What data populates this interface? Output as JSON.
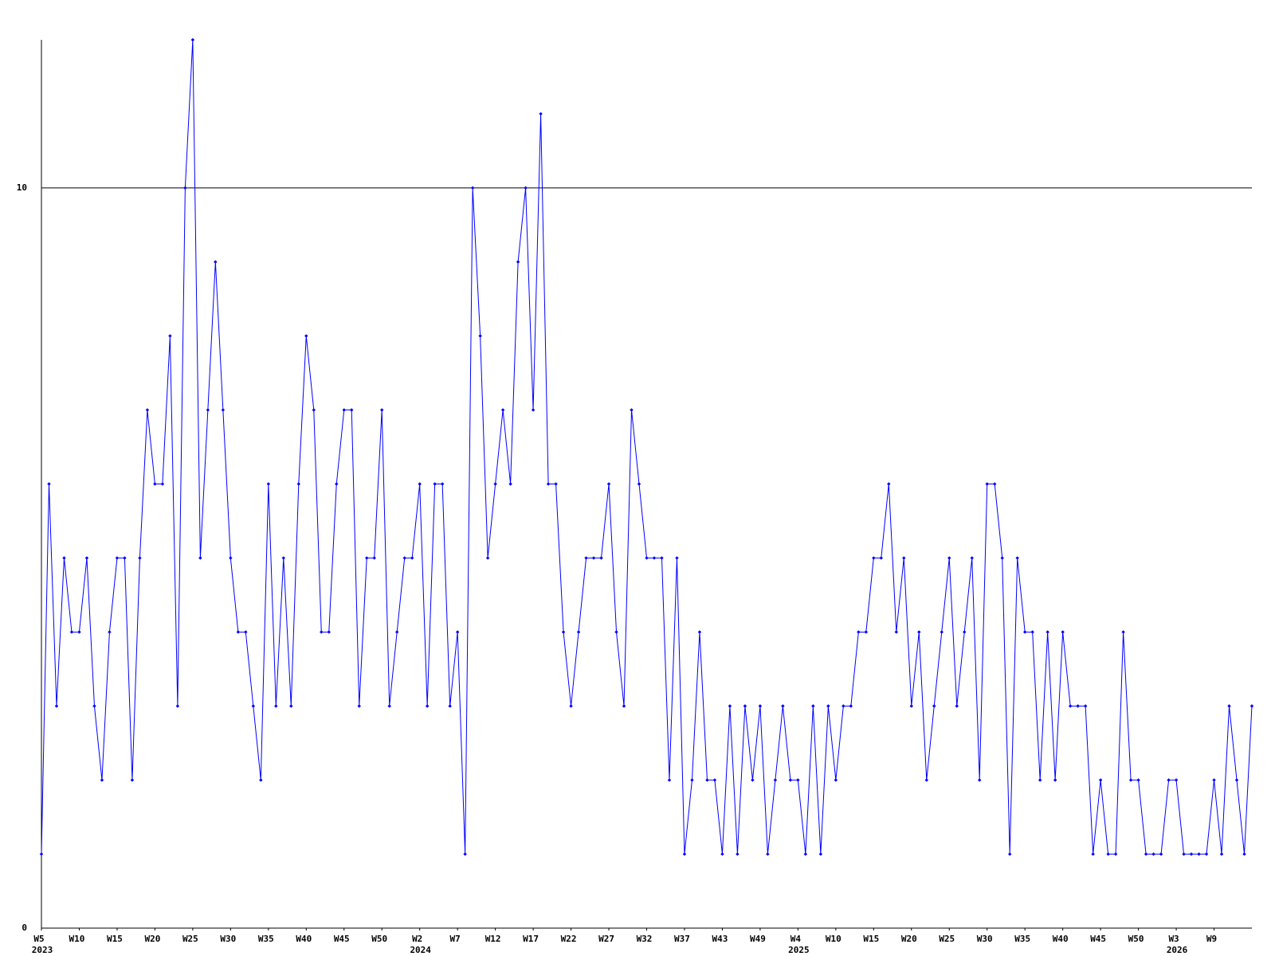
{
  "chart_data": {
    "type": "line",
    "color": "#0000ff",
    "ylim": [
      0,
      12
    ],
    "yticks": [
      0,
      10
    ],
    "grid": true,
    "categories": [
      "W5",
      null,
      null,
      null,
      null,
      "W10",
      null,
      null,
      null,
      null,
      "W15",
      null,
      null,
      null,
      null,
      "W20",
      null,
      null,
      null,
      null,
      "W25",
      null,
      null,
      null,
      null,
      "W30",
      null,
      null,
      null,
      null,
      "W35",
      null,
      null,
      null,
      null,
      "W40",
      null,
      null,
      null,
      null,
      "W45",
      null,
      null,
      null,
      null,
      "W50",
      null,
      null,
      null,
      null,
      "W2",
      null,
      null,
      null,
      null,
      "W7",
      null,
      null,
      null,
      null,
      "W12",
      null,
      null,
      null,
      null,
      "W17",
      null,
      null,
      null,
      null,
      "W22",
      null,
      null,
      null,
      null,
      "W27",
      null,
      null,
      null,
      null,
      "W32",
      null,
      null,
      null,
      null,
      "W37",
      null,
      null,
      null,
      null,
      "W43",
      null,
      null,
      null,
      null,
      "W49",
      null,
      null,
      null,
      null,
      "W4",
      null,
      null,
      null,
      null,
      "W10",
      null,
      null,
      null,
      null,
      "W15",
      null,
      null,
      null,
      null,
      "W20",
      null,
      null,
      null,
      null,
      "W25",
      null,
      null,
      null,
      null,
      "W30",
      null,
      null,
      null,
      null,
      "W35",
      null,
      null,
      null,
      null,
      "W40",
      null,
      null,
      null,
      null,
      "W45",
      null,
      null,
      null,
      null,
      "W50",
      null,
      null,
      null,
      null,
      "W3",
      null,
      null,
      null,
      null,
      "W9",
      null,
      null,
      null,
      null,
      null
    ],
    "category_years": [
      "2023",
      null,
      null,
      null,
      null,
      null,
      null,
      null,
      null,
      null,
      null,
      null,
      null,
      null,
      null,
      null,
      null,
      null,
      null,
      null,
      null,
      null,
      null,
      null,
      null,
      null,
      null,
      null,
      null,
      null,
      null,
      null,
      null,
      null,
      null,
      null,
      null,
      null,
      null,
      null,
      null,
      null,
      null,
      null,
      null,
      null,
      null,
      null,
      null,
      null,
      "2024",
      null,
      null,
      null,
      null,
      null,
      null,
      null,
      null,
      null,
      null,
      null,
      null,
      null,
      null,
      null,
      null,
      null,
      null,
      null,
      null,
      null,
      null,
      null,
      null,
      null,
      null,
      null,
      null,
      null,
      null,
      null,
      null,
      null,
      null,
      null,
      null,
      null,
      null,
      null,
      null,
      null,
      null,
      null,
      null,
      null,
      null,
      null,
      null,
      null,
      "2025",
      null,
      null,
      null,
      null,
      null,
      null,
      null,
      null,
      null,
      null,
      null,
      null,
      null,
      null,
      null,
      null,
      null,
      null,
      null,
      null,
      null,
      null,
      null,
      null,
      null,
      null,
      null,
      null,
      null,
      null,
      null,
      null,
      null,
      null,
      null,
      null,
      null,
      null,
      null,
      null,
      null,
      null,
      null,
      null,
      null,
      null,
      null,
      null,
      null,
      "2026",
      null,
      null,
      null,
      null,
      null,
      null,
      null,
      null,
      null,
      null
    ],
    "values": [
      1,
      6,
      3,
      5,
      4,
      4,
      5,
      3,
      2,
      4,
      5,
      5,
      2,
      5,
      7,
      6,
      6,
      8,
      3,
      10,
      12,
      5,
      7,
      9,
      7,
      5,
      4,
      4,
      3,
      2,
      6,
      3,
      5,
      3,
      6,
      8,
      7,
      4,
      4,
      6,
      7,
      7,
      3,
      5,
      5,
      7,
      3,
      4,
      5,
      5,
      6,
      3,
      6,
      6,
      3,
      4,
      1,
      10,
      8,
      5,
      6,
      7,
      6,
      9,
      10,
      7,
      11,
      6,
      6,
      4,
      3,
      4,
      5,
      5,
      5,
      6,
      4,
      3,
      7,
      6,
      5,
      5,
      5,
      2,
      5,
      1,
      2,
      4,
      2,
      2,
      1,
      3,
      1,
      3,
      2,
      3,
      1,
      2,
      3,
      2,
      2,
      1,
      3,
      1,
      3,
      2,
      3,
      3,
      4,
      4,
      5,
      5,
      6,
      4,
      5,
      3,
      4,
      2,
      3,
      4,
      5,
      3,
      4,
      5,
      2,
      6,
      6,
      5,
      1,
      5,
      4,
      4,
      2,
      4,
      2,
      4,
      3,
      3,
      3,
      1,
      2,
      1,
      1,
      4,
      2,
      2,
      1,
      1,
      1,
      2,
      2,
      1,
      1,
      1,
      1,
      2,
      1,
      3,
      2,
      1,
      3
    ]
  }
}
